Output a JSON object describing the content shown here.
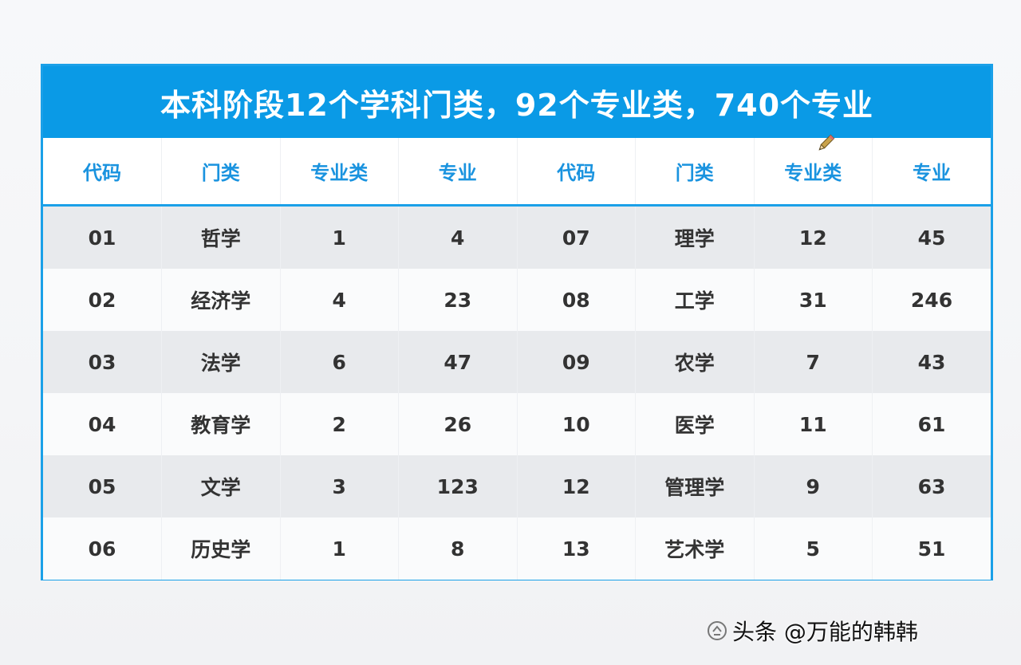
{
  "banner": {
    "title": "本科阶段12个学科门类，92个专业类，740个专业"
  },
  "table": {
    "headers": [
      "代码",
      "门类",
      "专业类",
      "专业",
      "代码",
      "门类",
      "专业类",
      "专业"
    ],
    "rows": [
      [
        "01",
        "哲学",
        "1",
        "4",
        "07",
        "理学",
        "12",
        "45"
      ],
      [
        "02",
        "经济学",
        "4",
        "23",
        "08",
        "工学",
        "31",
        "246"
      ],
      [
        "03",
        "法学",
        "6",
        "47",
        "09",
        "农学",
        "7",
        "43"
      ],
      [
        "04",
        "教育学",
        "2",
        "26",
        "10",
        "医学",
        "11",
        "61"
      ],
      [
        "05",
        "文学",
        "3",
        "123",
        "12",
        "管理学",
        "9",
        "63"
      ],
      [
        "06",
        "历史学",
        "1",
        "8",
        "13",
        "艺术学",
        "5",
        "51"
      ]
    ]
  },
  "watermark": {
    "text": "头条 @万能的韩韩"
  },
  "colors": {
    "accent": "#0a9ae6",
    "header_text": "#1a93df",
    "row_band": "#e8eaed"
  }
}
